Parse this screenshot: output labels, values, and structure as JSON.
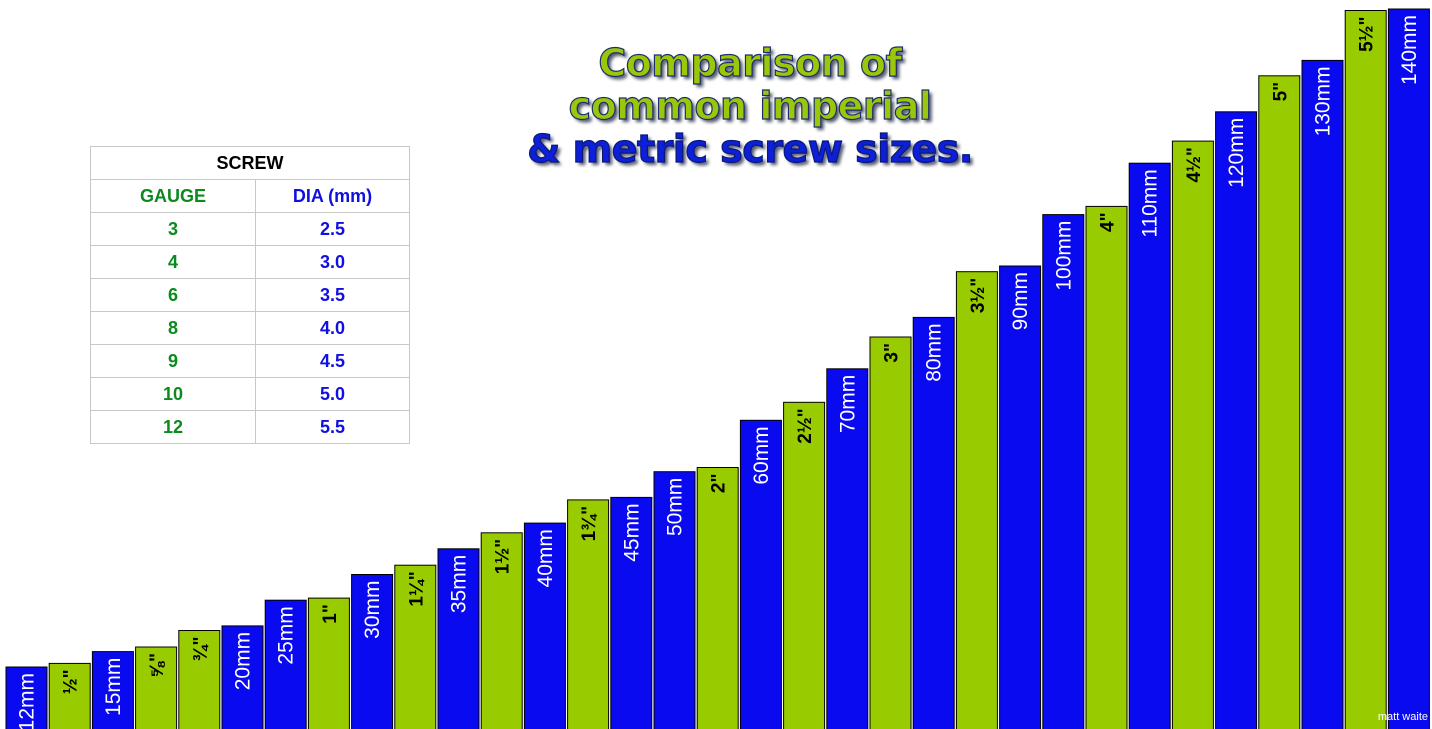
{
  "title": {
    "line1": "Comparison of",
    "line2": "common imperial",
    "line3": "& metric screw sizes."
  },
  "table": {
    "header": "SCREW",
    "col_gauge": "GAUGE",
    "col_dia": "DIA (mm)",
    "rows": [
      {
        "gauge": "3",
        "dia": "2.5"
      },
      {
        "gauge": "4",
        "dia": "3.0"
      },
      {
        "gauge": "6",
        "dia": "3.5"
      },
      {
        "gauge": "8",
        "dia": "4.0"
      },
      {
        "gauge": "9",
        "dia": "4.5"
      },
      {
        "gauge": "10",
        "dia": "5.0"
      },
      {
        "gauge": "12",
        "dia": "5.5"
      }
    ]
  },
  "credit": "matt waite",
  "colors": {
    "metric": "#0a0af0",
    "imperial": "#99cc00",
    "imperial_text": "#000000",
    "metric_text": "#ffffff"
  },
  "chart_data": {
    "type": "bar",
    "unit": "mm",
    "ylim": [
      0,
      145
    ],
    "bars": [
      {
        "label": "12mm",
        "kind": "metric",
        "value": 12
      },
      {
        "label": "½\"",
        "kind": "imperial",
        "value": 12.7
      },
      {
        "label": "15mm",
        "kind": "metric",
        "value": 15
      },
      {
        "label": "⅝\"",
        "kind": "imperial",
        "value": 15.9
      },
      {
        "label": "¾\"",
        "kind": "imperial",
        "value": 19.1
      },
      {
        "label": "20mm",
        "kind": "metric",
        "value": 20
      },
      {
        "label": "25mm",
        "kind": "metric",
        "value": 25
      },
      {
        "label": "1\"",
        "kind": "imperial",
        "value": 25.4
      },
      {
        "label": "30mm",
        "kind": "metric",
        "value": 30
      },
      {
        "label": "1¼\"",
        "kind": "imperial",
        "value": 31.8
      },
      {
        "label": "35mm",
        "kind": "metric",
        "value": 35
      },
      {
        "label": "1½\"",
        "kind": "imperial",
        "value": 38.1
      },
      {
        "label": "40mm",
        "kind": "metric",
        "value": 40
      },
      {
        "label": "1¾\"",
        "kind": "imperial",
        "value": 44.5
      },
      {
        "label": "45mm",
        "kind": "metric",
        "value": 45
      },
      {
        "label": "50mm",
        "kind": "metric",
        "value": 50
      },
      {
        "label": "2\"",
        "kind": "imperial",
        "value": 50.8
      },
      {
        "label": "60mm",
        "kind": "metric",
        "value": 60
      },
      {
        "label": "2½\"",
        "kind": "imperial",
        "value": 63.5
      },
      {
        "label": "70mm",
        "kind": "metric",
        "value": 70
      },
      {
        "label": "3\"",
        "kind": "imperial",
        "value": 76.2
      },
      {
        "label": "80mm",
        "kind": "metric",
        "value": 80
      },
      {
        "label": "3½\"",
        "kind": "imperial",
        "value": 88.9
      },
      {
        "label": "90mm",
        "kind": "metric",
        "value": 90
      },
      {
        "label": "100mm",
        "kind": "metric",
        "value": 100
      },
      {
        "label": "4\"",
        "kind": "imperial",
        "value": 101.6
      },
      {
        "label": "110mm",
        "kind": "metric",
        "value": 110
      },
      {
        "label": "4½\"",
        "kind": "imperial",
        "value": 114.3
      },
      {
        "label": "120mm",
        "kind": "metric",
        "value": 120
      },
      {
        "label": "5\"",
        "kind": "imperial",
        "value": 127
      },
      {
        "label": "130mm",
        "kind": "metric",
        "value": 130
      },
      {
        "label": "5½\"",
        "kind": "imperial",
        "value": 139.7
      },
      {
        "label": "140mm",
        "kind": "metric",
        "value": 140
      }
    ]
  }
}
